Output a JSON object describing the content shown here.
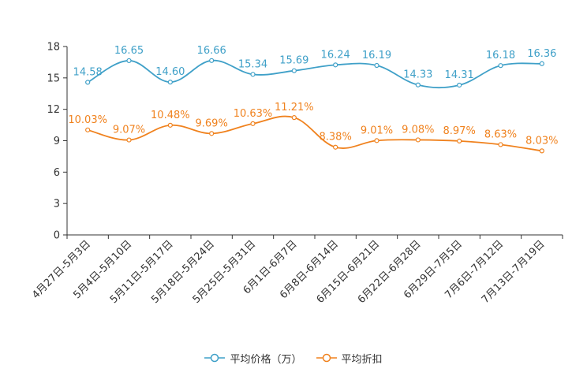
{
  "chart_data": {
    "type": "line",
    "title": "",
    "xlabel": "",
    "ylabel": "",
    "ylim": [
      0,
      18
    ],
    "yticks": [
      0,
      3,
      6,
      9,
      12,
      15,
      18
    ],
    "ytick_labels": [
      "0",
      "3",
      "6",
      "9",
      "12",
      "15",
      "18"
    ],
    "grid": false,
    "legend_position": "bottom-center",
    "categories": [
      "4月27日-5月3日",
      "5月4日-5月10日",
      "5月11日-5月17日",
      "5月18日-5月24日",
      "5月25日-5月31日",
      "6月1日-6月7日",
      "6月8日-6月14日",
      "6月15日-6月21日",
      "6月22日-6月28日",
      "6月29日-7月5日",
      "7月6日-7月12日",
      "7月13日-7月19日"
    ],
    "series": [
      {
        "name": "平均价格（万）",
        "color": "#3fa0c8",
        "values": [
          14.58,
          16.65,
          14.6,
          16.66,
          15.34,
          15.69,
          16.24,
          16.19,
          14.33,
          14.31,
          16.18,
          16.36
        ],
        "labels": [
          "14.58",
          "16.65",
          "14.60",
          "16.66",
          "15.34",
          "15.69",
          "16.24",
          "16.19",
          "14.33",
          "14.31",
          "16.18",
          "16.36"
        ]
      },
      {
        "name": "平均折扣",
        "color": "#f0821e",
        "values": [
          10.03,
          9.07,
          10.48,
          9.69,
          10.63,
          11.21,
          8.38,
          9.01,
          9.08,
          8.97,
          8.63,
          8.03
        ],
        "labels": [
          "10.03%",
          "9.07%",
          "10.48%",
          "9.69%",
          "10.63%",
          "11.21%",
          "8.38%",
          "9.01%",
          "9.08%",
          "8.97%",
          "8.63%",
          "8.03%"
        ]
      }
    ]
  },
  "legend": {
    "items": [
      {
        "label": "平均价格（万）",
        "color": "#3fa0c8"
      },
      {
        "label": "平均折扣",
        "color": "#f0821e"
      }
    ]
  }
}
